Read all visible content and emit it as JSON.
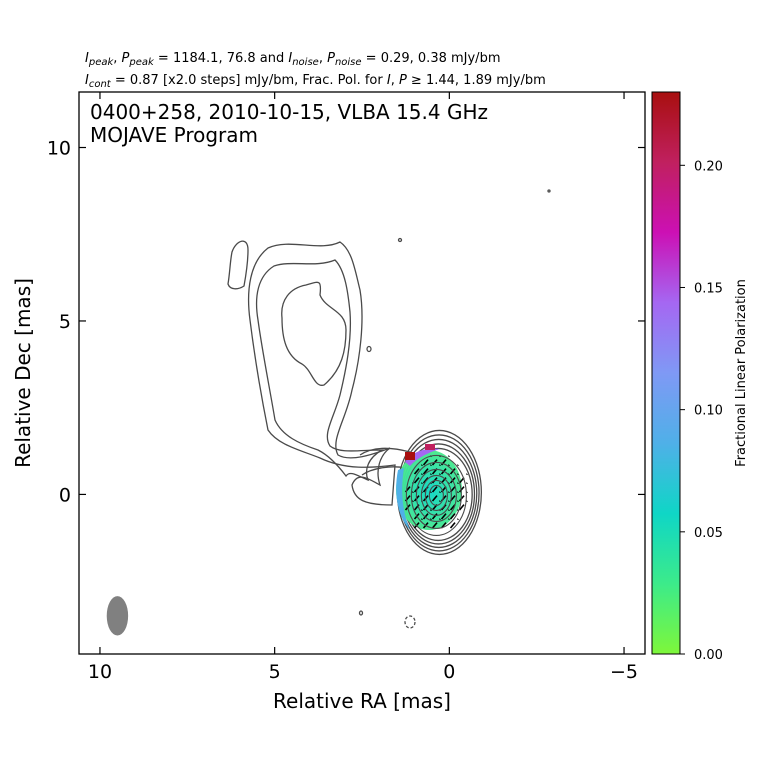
{
  "header": {
    "line1": "I_peak, P_peak = 1184.1, 76.8 and I_noise, P_noise = 0.29, 0.38 mJy/bm",
    "line1_parts": {
      "i_peak": "I",
      "i_peak_sub": "peak",
      "p_peak": "P",
      "p_peak_sub": "peak",
      "values_peak": " = 1184.1, 76.8 and ",
      "i_noise": "I",
      "i_noise_sub": "noise",
      "p_noise": "P",
      "p_noise_sub": "noise",
      "values_noise": " = 0.29, 0.38 mJy/bm"
    },
    "line2": "I_cont = 0.87 [x2.0 steps] mJy/bm, Frac. Pol. for I, P ≥ 1.44, 1.89 mJy/bm",
    "line2_parts": {
      "i_cont": "I",
      "i_cont_sub": "cont",
      "cont_text": " = 0.87 [x2.0 steps] mJy/bm, Frac. Pol. for ",
      "i": "I",
      "sep": ", ",
      "p": "P",
      "ge": " ≥ ",
      "thresholds": "1.44, 1.89 mJy/bm"
    }
  },
  "chart_data": {
    "type": "contour",
    "title_line1": "0400+258, 2010-10-15, VLBA 15.4 GHz",
    "title_line2": "MOJAVE Program",
    "xlabel": "Relative RA [mas]",
    "ylabel": "Relative Dec [mas]",
    "xlim": [
      10.6,
      -5.6
    ],
    "ylim": [
      -4.6,
      11.6
    ],
    "xticks": [
      10,
      5,
      0,
      -5
    ],
    "xtick_labels": [
      "10",
      "5",
      "0",
      "−5"
    ],
    "yticks": [
      0,
      5,
      10
    ],
    "ytick_labels": [
      "0",
      "5",
      "10"
    ],
    "core_position": [
      0.4,
      0.0
    ],
    "beam": {
      "ra": 9.5,
      "dec": -3.5,
      "major_mas": 1.05,
      "minor_mas": 0.55
    },
    "colorbar": {
      "label": "Fractional Linear Polarization",
      "range": [
        0.0,
        0.23
      ],
      "ticks": [
        0.0,
        0.05,
        0.1,
        0.15,
        0.2
      ],
      "tick_labels": [
        "0.00",
        "0.05",
        "0.10",
        "0.15",
        "0.20"
      ],
      "colors": [
        "#7ef73a",
        "#3ceb8a",
        "#0fd6c6",
        "#4fb0e8",
        "#7f99f5",
        "#a567f2",
        "#cc10b4",
        "#c0205f",
        "#a80f0f"
      ]
    },
    "contour_color": "#4a4a4a",
    "grid": false
  }
}
